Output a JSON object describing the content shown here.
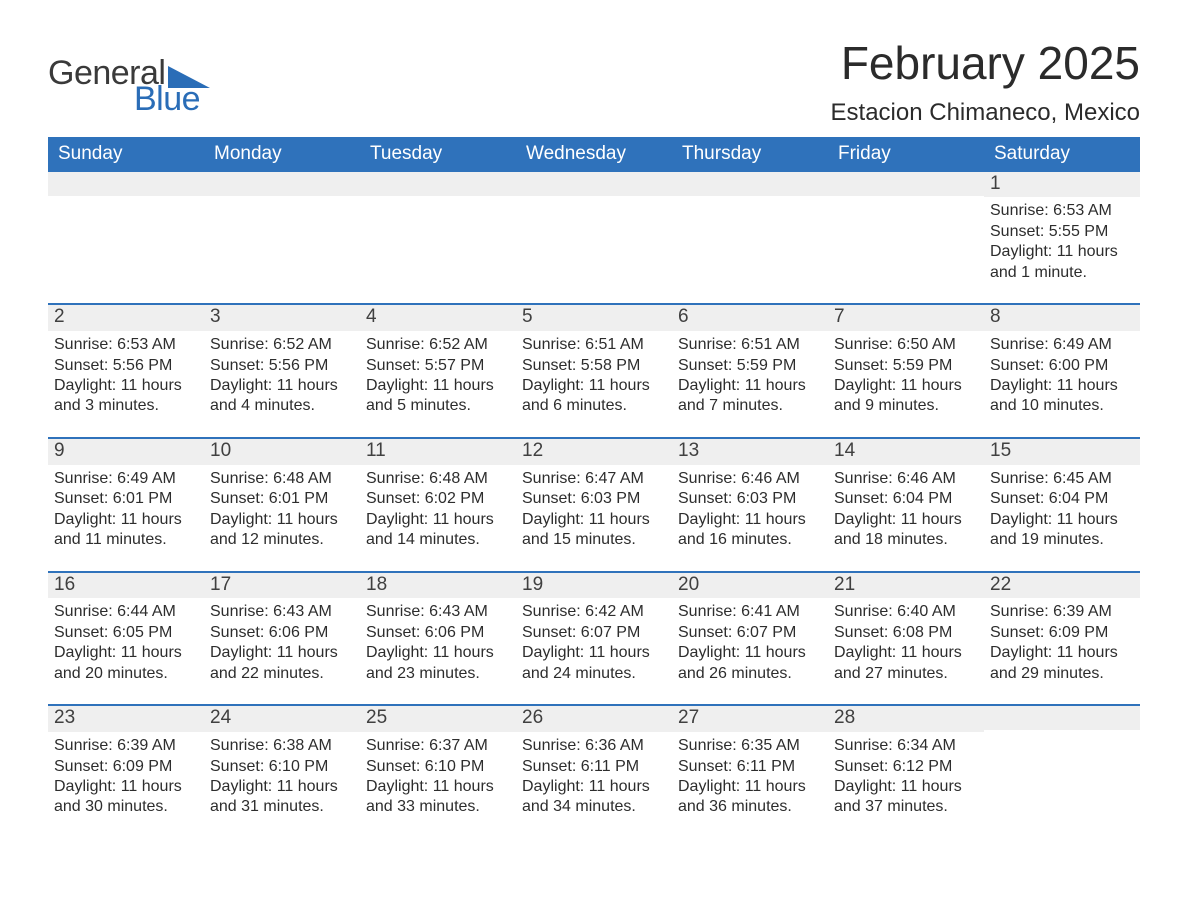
{
  "brand": {
    "word1": "General",
    "word2": "Blue",
    "accent_color": "#2a6db7"
  },
  "title": {
    "month_year": "February 2025",
    "location": "Estacion Chimaneco, Mexico"
  },
  "colors": {
    "header_bg": "#2f72bb",
    "header_text": "#ffffff",
    "daynum_bg": "#efefef",
    "week_border": "#2f72bb",
    "body_text": "#2d2d2d",
    "page_bg": "#ffffff"
  },
  "typography": {
    "body_font": "Segoe UI, Arial, sans-serif",
    "month_title_size_pt": 34,
    "location_size_pt": 18,
    "dayhead_size_pt": 14,
    "cell_size_pt": 12
  },
  "day_headers": [
    "Sunday",
    "Monday",
    "Tuesday",
    "Wednesday",
    "Thursday",
    "Friday",
    "Saturday"
  ],
  "weeks": [
    [
      {
        "blank": true
      },
      {
        "blank": true
      },
      {
        "blank": true
      },
      {
        "blank": true
      },
      {
        "blank": true
      },
      {
        "blank": true
      },
      {
        "n": "1",
        "sunrise": "Sunrise: 6:53 AM",
        "sunset": "Sunset: 5:55 PM",
        "d1": "Daylight: 11 hours",
        "d2": "and 1 minute."
      }
    ],
    [
      {
        "n": "2",
        "sunrise": "Sunrise: 6:53 AM",
        "sunset": "Sunset: 5:56 PM",
        "d1": "Daylight: 11 hours",
        "d2": "and 3 minutes."
      },
      {
        "n": "3",
        "sunrise": "Sunrise: 6:52 AM",
        "sunset": "Sunset: 5:56 PM",
        "d1": "Daylight: 11 hours",
        "d2": "and 4 minutes."
      },
      {
        "n": "4",
        "sunrise": "Sunrise: 6:52 AM",
        "sunset": "Sunset: 5:57 PM",
        "d1": "Daylight: 11 hours",
        "d2": "and 5 minutes."
      },
      {
        "n": "5",
        "sunrise": "Sunrise: 6:51 AM",
        "sunset": "Sunset: 5:58 PM",
        "d1": "Daylight: 11 hours",
        "d2": "and 6 minutes."
      },
      {
        "n": "6",
        "sunrise": "Sunrise: 6:51 AM",
        "sunset": "Sunset: 5:59 PM",
        "d1": "Daylight: 11 hours",
        "d2": "and 7 minutes."
      },
      {
        "n": "7",
        "sunrise": "Sunrise: 6:50 AM",
        "sunset": "Sunset: 5:59 PM",
        "d1": "Daylight: 11 hours",
        "d2": "and 9 minutes."
      },
      {
        "n": "8",
        "sunrise": "Sunrise: 6:49 AM",
        "sunset": "Sunset: 6:00 PM",
        "d1": "Daylight: 11 hours",
        "d2": "and 10 minutes."
      }
    ],
    [
      {
        "n": "9",
        "sunrise": "Sunrise: 6:49 AM",
        "sunset": "Sunset: 6:01 PM",
        "d1": "Daylight: 11 hours",
        "d2": "and 11 minutes."
      },
      {
        "n": "10",
        "sunrise": "Sunrise: 6:48 AM",
        "sunset": "Sunset: 6:01 PM",
        "d1": "Daylight: 11 hours",
        "d2": "and 12 minutes."
      },
      {
        "n": "11",
        "sunrise": "Sunrise: 6:48 AM",
        "sunset": "Sunset: 6:02 PM",
        "d1": "Daylight: 11 hours",
        "d2": "and 14 minutes."
      },
      {
        "n": "12",
        "sunrise": "Sunrise: 6:47 AM",
        "sunset": "Sunset: 6:03 PM",
        "d1": "Daylight: 11 hours",
        "d2": "and 15 minutes."
      },
      {
        "n": "13",
        "sunrise": "Sunrise: 6:46 AM",
        "sunset": "Sunset: 6:03 PM",
        "d1": "Daylight: 11 hours",
        "d2": "and 16 minutes."
      },
      {
        "n": "14",
        "sunrise": "Sunrise: 6:46 AM",
        "sunset": "Sunset: 6:04 PM",
        "d1": "Daylight: 11 hours",
        "d2": "and 18 minutes."
      },
      {
        "n": "15",
        "sunrise": "Sunrise: 6:45 AM",
        "sunset": "Sunset: 6:04 PM",
        "d1": "Daylight: 11 hours",
        "d2": "and 19 minutes."
      }
    ],
    [
      {
        "n": "16",
        "sunrise": "Sunrise: 6:44 AM",
        "sunset": "Sunset: 6:05 PM",
        "d1": "Daylight: 11 hours",
        "d2": "and 20 minutes."
      },
      {
        "n": "17",
        "sunrise": "Sunrise: 6:43 AM",
        "sunset": "Sunset: 6:06 PM",
        "d1": "Daylight: 11 hours",
        "d2": "and 22 minutes."
      },
      {
        "n": "18",
        "sunrise": "Sunrise: 6:43 AM",
        "sunset": "Sunset: 6:06 PM",
        "d1": "Daylight: 11 hours",
        "d2": "and 23 minutes."
      },
      {
        "n": "19",
        "sunrise": "Sunrise: 6:42 AM",
        "sunset": "Sunset: 6:07 PM",
        "d1": "Daylight: 11 hours",
        "d2": "and 24 minutes."
      },
      {
        "n": "20",
        "sunrise": "Sunrise: 6:41 AM",
        "sunset": "Sunset: 6:07 PM",
        "d1": "Daylight: 11 hours",
        "d2": "and 26 minutes."
      },
      {
        "n": "21",
        "sunrise": "Sunrise: 6:40 AM",
        "sunset": "Sunset: 6:08 PM",
        "d1": "Daylight: 11 hours",
        "d2": "and 27 minutes."
      },
      {
        "n": "22",
        "sunrise": "Sunrise: 6:39 AM",
        "sunset": "Sunset: 6:09 PM",
        "d1": "Daylight: 11 hours",
        "d2": "and 29 minutes."
      }
    ],
    [
      {
        "n": "23",
        "sunrise": "Sunrise: 6:39 AM",
        "sunset": "Sunset: 6:09 PM",
        "d1": "Daylight: 11 hours",
        "d2": "and 30 minutes."
      },
      {
        "n": "24",
        "sunrise": "Sunrise: 6:38 AM",
        "sunset": "Sunset: 6:10 PM",
        "d1": "Daylight: 11 hours",
        "d2": "and 31 minutes."
      },
      {
        "n": "25",
        "sunrise": "Sunrise: 6:37 AM",
        "sunset": "Sunset: 6:10 PM",
        "d1": "Daylight: 11 hours",
        "d2": "and 33 minutes."
      },
      {
        "n": "26",
        "sunrise": "Sunrise: 6:36 AM",
        "sunset": "Sunset: 6:11 PM",
        "d1": "Daylight: 11 hours",
        "d2": "and 34 minutes."
      },
      {
        "n": "27",
        "sunrise": "Sunrise: 6:35 AM",
        "sunset": "Sunset: 6:11 PM",
        "d1": "Daylight: 11 hours",
        "d2": "and 36 minutes."
      },
      {
        "n": "28",
        "sunrise": "Sunrise: 6:34 AM",
        "sunset": "Sunset: 6:12 PM",
        "d1": "Daylight: 11 hours",
        "d2": "and 37 minutes."
      },
      {
        "blank": true
      }
    ]
  ]
}
